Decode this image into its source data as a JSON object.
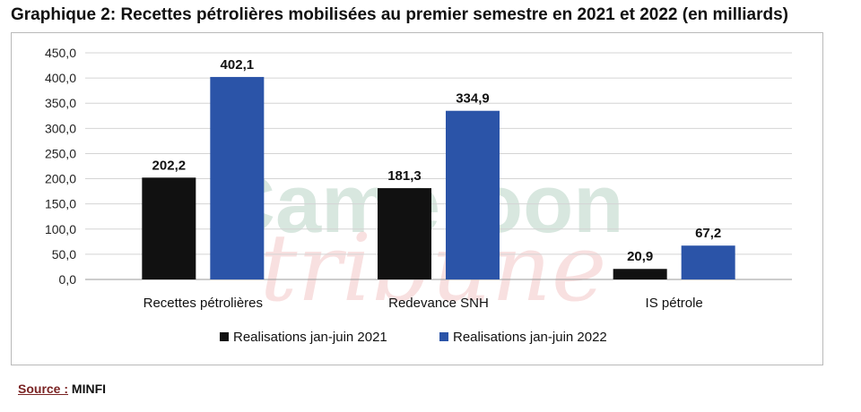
{
  "title": "Graphique 2: Recettes pétrolières mobilisées au premier semestre en 2021 et 2022 (en milliards)",
  "watermark": {
    "line1": "Cameroon",
    "line2": "tribune"
  },
  "source": {
    "label": "Source :",
    "value": "MINFI"
  },
  "chart_data": {
    "type": "bar",
    "title": "Graphique 2: Recettes pétrolières mobilisées au premier semestre en 2021 et 2022 (en milliards)",
    "categories": [
      "Recettes pétrolières",
      "Redevance SNH",
      "IS pétrole"
    ],
    "series": [
      {
        "name": "Realisations jan-juin 2021",
        "color": "#111111",
        "values": [
          202.2,
          181.3,
          20.9
        ],
        "labels": [
          "202,2",
          "181,3",
          "20,9"
        ]
      },
      {
        "name": "Realisations jan-juin 2022",
        "color": "#2b54a8",
        "values": [
          402.1,
          334.9,
          67.2
        ],
        "labels": [
          "402,1",
          "334,9",
          "67,2"
        ]
      }
    ],
    "ylim": [
      0,
      450
    ],
    "yticks": [
      0,
      50,
      100,
      150,
      200,
      250,
      300,
      350,
      400,
      450
    ],
    "ytick_labels": [
      "0,0",
      "50,0",
      "100,0",
      "150,0",
      "200,0",
      "250,0",
      "300,0",
      "350,0",
      "400,0",
      "450,0"
    ],
    "grid": true,
    "legend": "bottom",
    "xlabel": "",
    "ylabel": ""
  }
}
